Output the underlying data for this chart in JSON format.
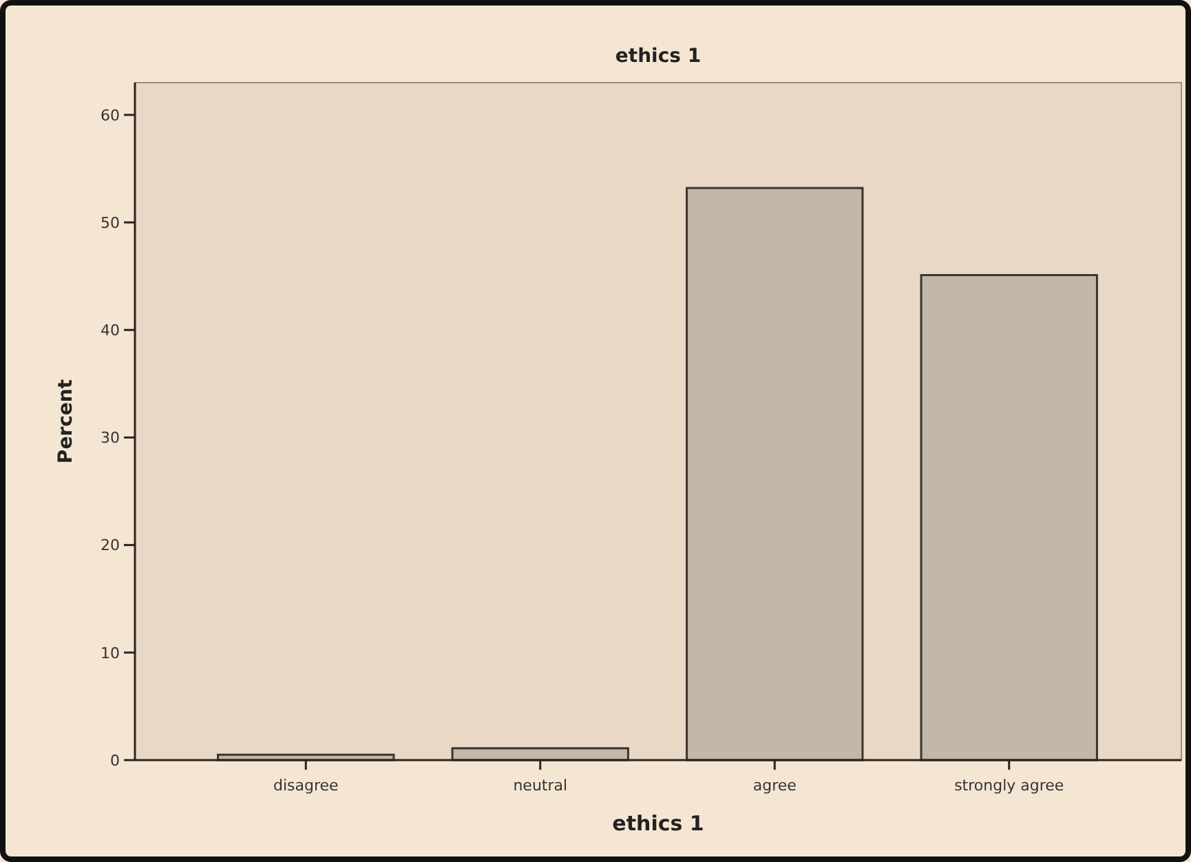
{
  "chart_data": {
    "type": "bar",
    "title": "ethics 1",
    "xlabel": "ethics 1",
    "ylabel": "Percent",
    "categories": [
      "disagree",
      "neutral",
      "agree",
      "strongly agree"
    ],
    "values": [
      0.5,
      1.1,
      53.2,
      45.1
    ],
    "color": "#c4b7a8",
    "ylim": [
      0,
      63
    ],
    "yticks": [
      0,
      10,
      20,
      30,
      40,
      50,
      60
    ],
    "grid": false
  }
}
